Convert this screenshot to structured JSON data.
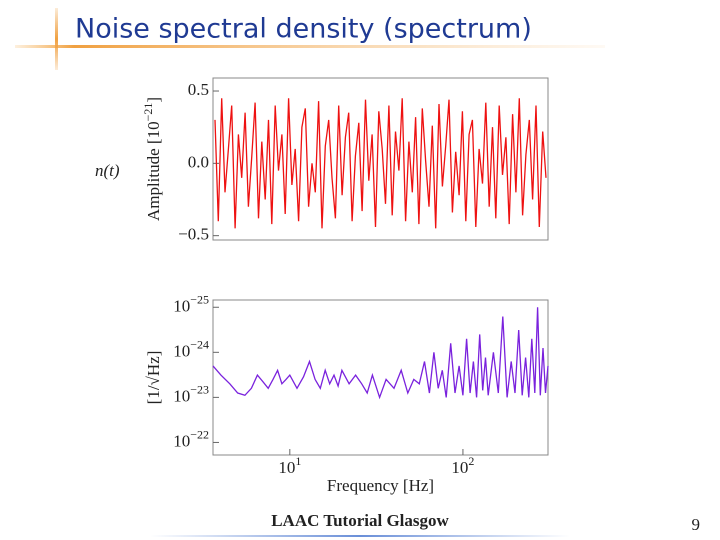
{
  "title": "Noise spectral density (spectrum)",
  "footer": "LAAC Tutorial Glasgow",
  "page_number": "9",
  "side_label": "n(t)",
  "chart_data": [
    {
      "type": "line",
      "color": "#ee1111",
      "ylabel": [
        "Amplitude [10",
        "−21",
        "]"
      ],
      "ylim": [
        -0.53,
        0.59
      ],
      "yticks": [
        {
          "value": -0.5,
          "label": "−0.5"
        },
        {
          "value": 0,
          "label": "0.0"
        },
        0.5
      ],
      "values": [
        0.3,
        -0.4,
        0.45,
        -0.2,
        0.1,
        0.4,
        -0.45,
        0.2,
        -0.1,
        0.35,
        -0.3,
        0.05,
        0.42,
        -0.38,
        0.15,
        -0.25,
        0.3,
        -0.42,
        0.4,
        -0.05,
        0.2,
        -0.35,
        0.45,
        -0.15,
        0.1,
        -0.4,
        0.25,
        0.38,
        -0.3,
        0.0,
        -0.2,
        0.43,
        -0.45,
        0.12,
        0.3,
        -0.1,
        -0.38,
        0.4,
        -0.22,
        0.18,
        0.35,
        -0.4,
        0.05,
        0.28,
        -0.33,
        0.44,
        -0.12,
        0.2,
        -0.44,
        0.36,
        0.1,
        -0.28,
        0.4,
        -0.36,
        0.22,
        -0.05,
        0.45,
        -0.4,
        0.15,
        -0.2,
        0.32,
        -0.42,
        0.38,
        0.02,
        -0.3,
        0.26,
        -0.45,
        0.41,
        -0.16,
        0.12,
        0.44,
        -0.34,
        0.08,
        -0.22,
        0.36,
        -0.4,
        0.2,
        0.3,
        -0.44,
        0.1,
        -0.14,
        0.42,
        -0.3,
        0.25,
        -0.38,
        0.4,
        -0.08,
        0.18,
        -0.42,
        0.34,
        -0.2,
        0.45,
        -0.36,
        0.06,
        0.3,
        -0.25,
        0.4,
        -0.44,
        0.22,
        -0.1
      ]
    },
    {
      "type": "line",
      "color": "#7a22dd",
      "ylabel": [
        "[1/√Hz]"
      ],
      "xlabel": "Frequency [Hz]",
      "xlog": true,
      "ylog": true,
      "xlim": [
        3.6,
        310
      ],
      "ylim": [
        1.9e-22,
        6.9e-26
      ],
      "xticks": [
        {
          "value": 10,
          "label": "10",
          "sup": "1"
        },
        {
          "value": 100,
          "label": "10",
          "sup": "2"
        }
      ],
      "yticks": [
        {
          "value": 1e-22,
          "label": "10",
          "sup": "−22"
        },
        {
          "value": 1e-23,
          "label": "10",
          "sup": "−23"
        },
        {
          "value": 1e-24,
          "label": "10",
          "sup": "−24"
        },
        {
          "value": 1e-25,
          "label": "10",
          "sup": "−25"
        }
      ],
      "x": [
        3.6,
        4,
        4.5,
        5,
        5.5,
        6,
        6.5,
        7,
        7.5,
        8,
        8.5,
        9,
        9.5,
        10,
        11,
        12,
        13,
        14,
        15,
        16,
        17,
        18,
        19,
        20,
        22,
        24,
        26,
        28,
        30,
        33,
        36,
        40,
        44,
        48,
        52,
        56,
        60,
        64,
        68,
        72,
        76,
        80,
        85,
        90,
        95,
        100,
        105,
        110,
        115,
        120,
        125,
        130,
        135,
        140,
        150,
        160,
        170,
        180,
        190,
        200,
        210,
        220,
        230,
        240,
        250,
        260,
        270,
        280,
        290,
        300,
        310
      ],
      "values": [
        2e-24,
        3.2e-24,
        5e-24,
        8e-24,
        9e-24,
        6.3e-24,
        3.2e-24,
        4.5e-24,
        6.3e-24,
        4e-24,
        2.5e-24,
        5e-24,
        4e-24,
        3.2e-24,
        6.3e-24,
        3.5e-24,
        1.6e-24,
        4e-24,
        6.3e-24,
        2.5e-24,
        5e-24,
        3.2e-24,
        5.6e-24,
        2.5e-24,
        5e-24,
        3.2e-24,
        5e-24,
        8e-24,
        3.2e-24,
        1e-23,
        4e-24,
        6.3e-24,
        2.5e-24,
        8e-24,
        4e-24,
        5e-24,
        1.6e-24,
        8e-24,
        1e-24,
        6.3e-24,
        2.5e-24,
        1e-23,
        6.3e-25,
        8e-24,
        2e-24,
        9e-24,
        5e-25,
        8e-24,
        1.6e-24,
        1e-23,
        4e-25,
        7e-24,
        1.3e-24,
        9e-24,
        1e-24,
        8e-24,
        1.6e-25,
        1e-23,
        1.6e-24,
        8e-24,
        3.2e-25,
        9e-24,
        1.3e-24,
        1e-23,
        5e-25,
        8e-24,
        1e-25,
        9e-24,
        8e-25,
        8e-24,
        2e-24
      ]
    }
  ]
}
